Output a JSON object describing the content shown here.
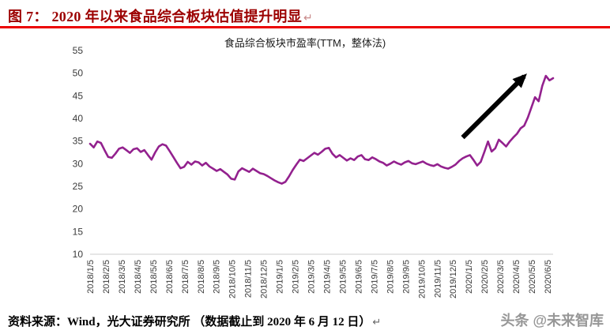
{
  "header": {
    "title": "图 7： 2020 年以来食品综合板块估值提升明显",
    "return_mark": "↵",
    "title_color": "#9c0000",
    "rule_color": "#ec0000"
  },
  "chart_data": {
    "type": "line",
    "title": "食品综合板块市盈率(TTM，整体法)",
    "line_color": "#93218e",
    "grid": false,
    "legend": "none",
    "ylim": [
      10,
      55
    ],
    "y_ticks": [
      10,
      15,
      20,
      25,
      30,
      35,
      40,
      45,
      50,
      55
    ],
    "x_labels": [
      "2018/1/5",
      "2018/2/5",
      "2018/3/5",
      "2018/4/5",
      "2018/5/5",
      "2018/6/5",
      "2018/7/5",
      "2018/8/5",
      "2018/9/5",
      "2018/10/5",
      "2018/11/5",
      "2018/12/5",
      "2019/1/5",
      "2019/2/5",
      "2019/3/5",
      "2019/4/5",
      "2019/5/5",
      "2019/6/5",
      "2019/7/5",
      "2019/8/5",
      "2019/9/5",
      "2019/10/5",
      "2019/11/5",
      "2019/12/5",
      "2020/1/5",
      "2020/2/5",
      "2020/3/5",
      "2020/4/5",
      "2020/5/5",
      "2020/6/5"
    ],
    "values": [
      34.4,
      33.6,
      34.9,
      34.6,
      33.0,
      31.5,
      31.3,
      32.2,
      33.3,
      33.6,
      33.0,
      32.4,
      33.2,
      33.4,
      32.6,
      33.0,
      31.9,
      30.9,
      32.5,
      33.8,
      34.3,
      34.0,
      32.8,
      31.5,
      30.2,
      29.0,
      29.3,
      30.4,
      29.8,
      30.5,
      30.3,
      29.6,
      30.2,
      29.4,
      28.9,
      28.4,
      28.8,
      28.2,
      27.6,
      26.7,
      26.5,
      28.3,
      29.0,
      28.6,
      28.2,
      28.9,
      28.4,
      27.9,
      27.7,
      27.3,
      26.8,
      26.3,
      25.9,
      25.6,
      26.0,
      27.2,
      28.6,
      29.8,
      30.9,
      30.6,
      31.2,
      31.8,
      32.4,
      32.0,
      32.6,
      33.3,
      33.5,
      32.2,
      31.4,
      31.9,
      31.3,
      30.7,
      31.2,
      30.8,
      31.6,
      31.9,
      31.0,
      30.8,
      31.4,
      31.0,
      30.5,
      30.2,
      29.6,
      30.0,
      30.5,
      30.1,
      29.8,
      30.3,
      30.6,
      30.1,
      29.9,
      30.2,
      30.5,
      30.0,
      29.7,
      29.5,
      29.9,
      29.4,
      29.1,
      28.9,
      29.3,
      29.8,
      30.6,
      31.2,
      31.6,
      31.9,
      30.8,
      29.6,
      30.4,
      32.6,
      34.9,
      32.7,
      33.4,
      35.3,
      34.6,
      33.8,
      34.9,
      35.8,
      36.6,
      37.8,
      38.4,
      40.2,
      42.4,
      44.7,
      43.8,
      47.2,
      49.4,
      48.4,
      48.9
    ],
    "annotation_arrow": {
      "from_i": 103,
      "from_v": 35.8,
      "to_i": 120,
      "to_v": 49.3,
      "color": "#000000"
    }
  },
  "footer": {
    "source_label": "资料来源：",
    "source_text": "Wind，光大证券研究所 （数据截止到 2020 年 6 月 12 日）",
    "return_mark": "↵",
    "watermark": "头条 @未来智库"
  }
}
